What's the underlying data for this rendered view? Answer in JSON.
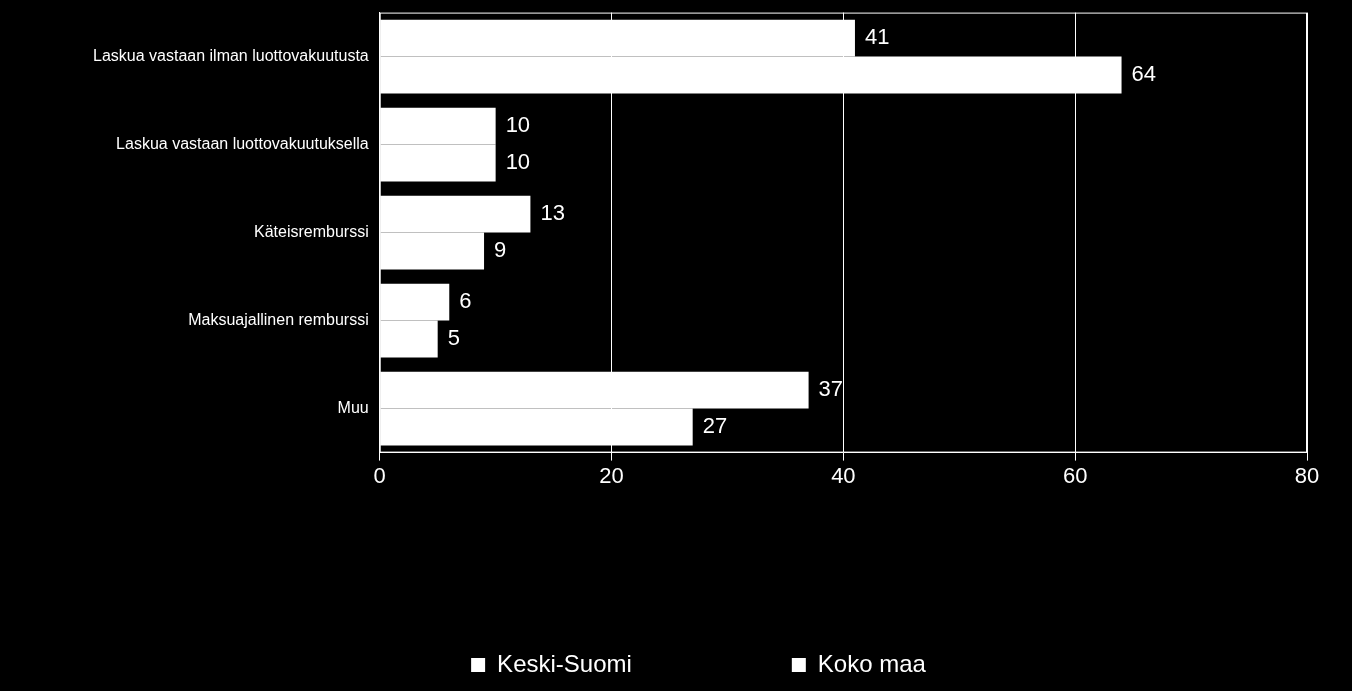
{
  "chart_data": {
    "type": "bar",
    "orientation": "horizontal",
    "categories": [
      "Laskua vastaan ilman luottovakuutusta",
      "Laskua vastaan luottovakuutuksella",
      "Käteisremburssi",
      "Maksuajallinen remburssi",
      "Muu"
    ],
    "series": [
      {
        "name": "Keski-Suomi",
        "color": "#ffffff",
        "values": [
          41,
          10,
          13,
          6,
          37
        ]
      },
      {
        "name": "Koko maa",
        "color": "#ffffff",
        "values": [
          64,
          10,
          9,
          5,
          27
        ]
      }
    ],
    "xlim": [
      0,
      80
    ],
    "xticks": [
      0,
      20,
      40,
      60,
      80
    ],
    "grid": true,
    "legend": "bottom",
    "data_labels": true
  }
}
